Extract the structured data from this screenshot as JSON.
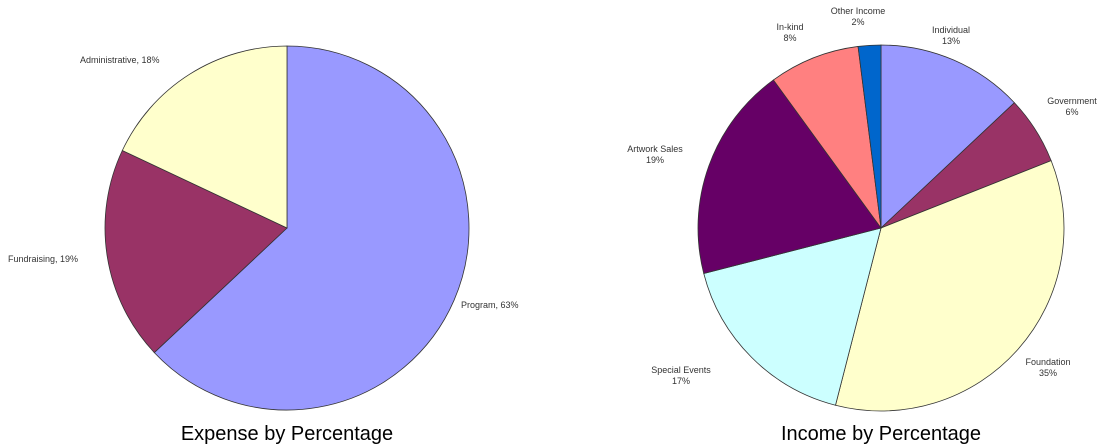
{
  "chart_data": [
    {
      "type": "pie",
      "title": "Expense by Percentage",
      "slices": [
        {
          "label": "Program, 63%",
          "value": 63,
          "color": "#9999ff"
        },
        {
          "label": "Fundraising, 19%",
          "value": 19,
          "color": "#993366"
        },
        {
          "label": "Administrative, 18%",
          "value": 18,
          "color": "#ffffcc"
        }
      ]
    },
    {
      "type": "pie",
      "title": "Income by Percentage",
      "slices": [
        {
          "label": [
            "Individual",
            "13%"
          ],
          "value": 13,
          "color": "#9999ff"
        },
        {
          "label": [
            "Government",
            "6%"
          ],
          "value": 6,
          "color": "#993366"
        },
        {
          "label": [
            "Foundation",
            "35%"
          ],
          "value": 35,
          "color": "#ffffcc"
        },
        {
          "label": [
            "Special Events",
            "17%"
          ],
          "value": 17,
          "color": "#ccffff"
        },
        {
          "label": [
            "Artwork Sales",
            "19%"
          ],
          "value": 19,
          "color": "#660066"
        },
        {
          "label": [
            "In-kind",
            "8%"
          ],
          "value": 8,
          "color": "#ff8080"
        },
        {
          "label": [
            "Other Income",
            "2%"
          ],
          "value": 2,
          "color": "#0066cc"
        }
      ]
    }
  ]
}
